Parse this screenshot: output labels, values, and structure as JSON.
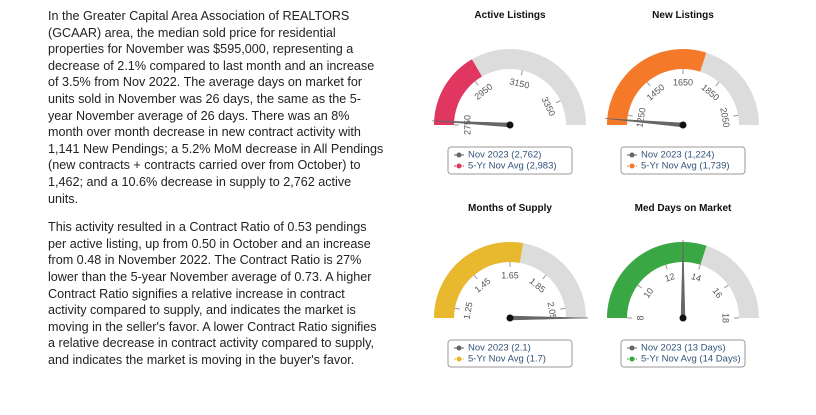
{
  "text": {
    "paragraphs": [
      "In the Greater Capital Area Association of REALTORS (GCAAR) area, the median sold price for residential properties for November was $595,000, representing a decrease of 2.1% compared to last month and an increase of 3.5% from Nov 2022. The average days on market for units sold in November was 26 days, the same as the 5-year November average of 26 days. There was an 8% month over month decrease in new contract activity with 1,141 New Pendings; a 5.2% MoM decrease in All Pendings (new contracts + contracts carried over from October) to 1,462; and a 10.6% decrease in supply to 2,762 active units.",
      "This activity resulted in a Contract Ratio of 0.53 pendings per active listing, up from 0.50 in October and an increase from 0.48 in November 2022. The Contract Ratio is 27% lower than the 5-year November average of 0.73. A higher Contract Ratio signifies a relative increase in contract activity compared to supply, and indicates the market is moving in the seller's favor. A lower Contract Ratio signifies a relative decrease in contract activity compared to supply, and indicates the market is moving in the buyer's favor."
    ]
  },
  "chart_data": [
    {
      "type": "gauge",
      "title": "Active Listings",
      "ylim": [
        2750,
        3450
      ],
      "yticks": [
        2750,
        2950,
        3150,
        3350
      ],
      "series": [
        {
          "name": "Nov 2023 (2,762)",
          "color": "#666666",
          "value": 2762
        },
        {
          "name": "5-Yr Nov Avg (2,983)",
          "color": "#e0365f",
          "value": 2983
        }
      ]
    },
    {
      "type": "gauge",
      "title": "New Listings",
      "ylim": [
        1200,
        2100
      ],
      "yticks": [
        1250,
        1450,
        1650,
        1850,
        2050
      ],
      "series": [
        {
          "name": "Nov 2023 (1,224)",
          "color": "#666666",
          "value": 1224
        },
        {
          "name": "5-Yr Nov Avg (1,739)",
          "color": "#f47a2a",
          "value": 1739
        }
      ]
    },
    {
      "type": "gauge",
      "title": "Months of Supply",
      "ylim": [
        1.2,
        2.1
      ],
      "yticks": [
        1.25,
        1.45,
        1.65,
        1.85,
        2.05
      ],
      "series": [
        {
          "name": "Nov 2023 (2.1)",
          "color": "#666666",
          "value": 2.1
        },
        {
          "name": "5-Yr Nov Avg (1.7)",
          "color": "#e8b92e",
          "value": 1.7
        }
      ]
    },
    {
      "type": "gauge",
      "title": "Med Days on Market",
      "ylim": [
        8,
        18
      ],
      "yticks": [
        8,
        10,
        12,
        14,
        16,
        18
      ],
      "series": [
        {
          "name": "Nov 2023 (13 Days)",
          "color": "#666666",
          "value": 13
        },
        {
          "name": "5-Yr Nov Avg (14 Days)",
          "color": "#3aa745",
          "value": 14
        }
      ]
    }
  ]
}
